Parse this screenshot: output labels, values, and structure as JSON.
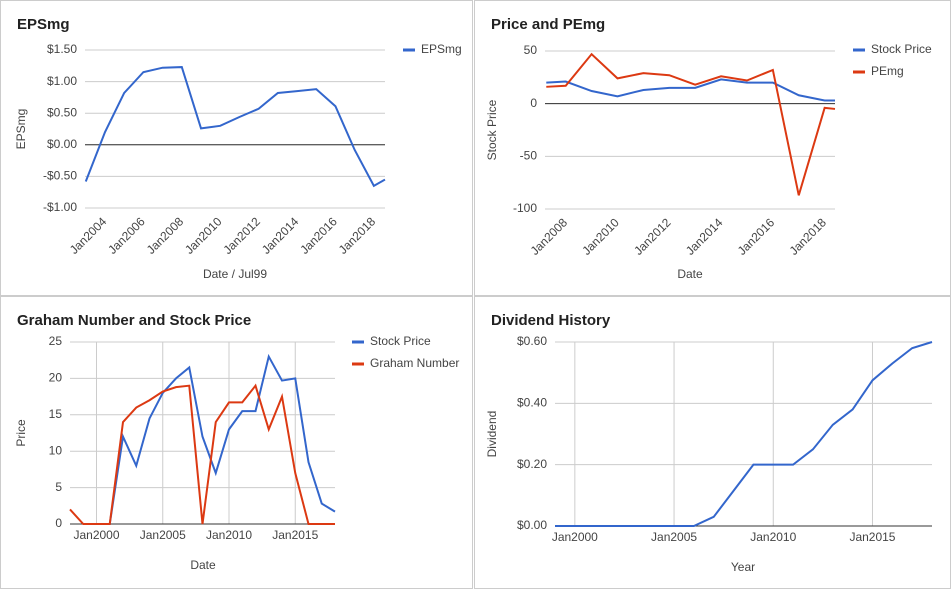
{
  "chart_data": [
    {
      "type": "line",
      "title": "EPSmg",
      "xlabel": "Date / Jul99",
      "ylabel": "EPSmg",
      "x": [
        2003,
        2004,
        2005,
        2006,
        2007,
        2008,
        2009,
        2010,
        2011,
        2012,
        2013,
        2014,
        2015,
        2016,
        2017,
        2018,
        2018.58
      ],
      "series": [
        {
          "name": "EPSmg",
          "color": "#3366cc",
          "values": [
            -0.58,
            0.2,
            0.82,
            1.15,
            1.22,
            1.23,
            0.26,
            0.3,
            0.44,
            0.57,
            0.82,
            0.85,
            0.88,
            0.61,
            -0.08,
            -0.65,
            -0.55
          ]
        }
      ],
      "xlim": [
        2002.96,
        2018.58
      ],
      "xticks": [
        {
          "value": 2004,
          "label": "Jan2004"
        },
        {
          "value": 2006,
          "label": "Jan2006"
        },
        {
          "value": 2008,
          "label": "Jan2008"
        },
        {
          "value": 2010,
          "label": "Jan2010"
        },
        {
          "value": 2012,
          "label": "Jan2012"
        },
        {
          "value": 2014,
          "label": "Jan2014"
        },
        {
          "value": 2016,
          "label": "Jan2016"
        },
        {
          "value": 2018,
          "label": "Jan2018"
        }
      ],
      "ylim": [
        -1,
        1.5
      ],
      "yticks": [
        {
          "value": 1.5,
          "label": "$1.50"
        },
        {
          "value": 1,
          "label": "$1.00"
        },
        {
          "value": 0.5,
          "label": "$0.50"
        },
        {
          "value": 0,
          "label": "$0.00"
        },
        {
          "value": -0.5,
          "label": "-$0.50"
        },
        {
          "value": -1,
          "label": "-$1.00"
        }
      ],
      "grid": true,
      "xgrid": false,
      "legend": "right"
    },
    {
      "type": "line",
      "title": "Price and PEmg",
      "xlabel": "Date",
      "ylabel": "Stock Price",
      "x": [
        2007.25,
        2008,
        2009,
        2010,
        2011,
        2012,
        2013,
        2014,
        2015,
        2016,
        2017,
        2018,
        2018.4
      ],
      "series": [
        {
          "name": "Stock Price",
          "color": "#3366cc",
          "values": [
            20,
            21,
            12,
            7,
            13,
            15,
            15,
            23,
            20,
            20,
            8,
            3,
            3
          ]
        },
        {
          "name": "PEmg",
          "color": "#dc3912",
          "values": [
            16,
            17,
            47,
            24,
            29,
            27,
            18,
            26,
            22,
            32,
            -87,
            -4,
            -5
          ]
        }
      ],
      "xlim": [
        2007.2,
        2018.4
      ],
      "xticks": [
        {
          "value": 2008,
          "label": "Jan2008"
        },
        {
          "value": 2010,
          "label": "Jan2010"
        },
        {
          "value": 2012,
          "label": "Jan2012"
        },
        {
          "value": 2014,
          "label": "Jan2014"
        },
        {
          "value": 2016,
          "label": "Jan2016"
        },
        {
          "value": 2018,
          "label": "Jan2018"
        }
      ],
      "ylim": [
        -100,
        50
      ],
      "yticks": [
        50,
        0,
        -50,
        -100
      ],
      "grid": true,
      "xgrid": false,
      "legend": "right"
    },
    {
      "type": "line",
      "title": "Graham Number and Stock Price",
      "xlabel": "Date",
      "ylabel": "Price",
      "x": [
        1998,
        1999,
        2000,
        2001,
        2002,
        2003,
        2004,
        2005,
        2006,
        2007,
        2008,
        2009,
        2010,
        2011,
        2012,
        2013,
        2014,
        2015,
        2016,
        2017,
        2018
      ],
      "series": [
        {
          "name": "Stock Price",
          "color": "#3366cc",
          "values": [
            null,
            0,
            0,
            0,
            12,
            8,
            14.5,
            18,
            20,
            21.5,
            12,
            7,
            13,
            15.5,
            15.5,
            23,
            19.7,
            20,
            8.5,
            2.8,
            1.7
          ]
        },
        {
          "name": "Graham Number",
          "color": "#dc3912",
          "values": [
            2,
            0,
            0,
            0,
            14,
            16,
            17,
            18.2,
            18.8,
            19,
            0,
            14,
            16.7,
            16.7,
            19,
            13,
            17.5,
            7,
            0,
            0,
            0
          ]
        }
      ],
      "xlim": [
        1998,
        2018
      ],
      "xticks": [
        {
          "value": 2000,
          "label": "Jan2000"
        },
        {
          "value": 2005,
          "label": "Jan2005"
        },
        {
          "value": 2010,
          "label": "Jan2010"
        },
        {
          "value": 2015,
          "label": "Jan2015"
        }
      ],
      "ylim": [
        0,
        25
      ],
      "yticks": [
        0,
        5,
        10,
        15,
        20,
        25
      ],
      "grid": true,
      "xgrid": true,
      "legend": "right"
    },
    {
      "type": "line",
      "title": "Dividend History",
      "xlabel": "Year",
      "ylabel": "Dividend",
      "x": [
        1999,
        2000,
        2001,
        2002,
        2003,
        2004,
        2005,
        2006,
        2007,
        2008,
        2009,
        2010,
        2011,
        2012,
        2013,
        2014,
        2015,
        2016,
        2017,
        2018
      ],
      "series": [
        {
          "color": "#3366cc",
          "values": [
            0,
            0,
            0,
            0,
            0,
            0,
            0,
            0,
            0.03,
            0.115,
            0.2,
            0.2,
            0.2,
            0.25,
            0.33,
            0.38,
            0.475,
            0.53,
            0.58,
            0.6
          ]
        }
      ],
      "xlim": [
        1999,
        2018
      ],
      "xticks": [
        {
          "value": 2000,
          "label": "Jan2000"
        },
        {
          "value": 2005,
          "label": "Jan2005"
        },
        {
          "value": 2010,
          "label": "Jan2010"
        },
        {
          "value": 2015,
          "label": "Jan2015"
        }
      ],
      "ylim": [
        0,
        0.6
      ],
      "yticks": [
        {
          "value": 0,
          "label": "$0.00"
        },
        {
          "value": 0.2,
          "label": "$0.20"
        },
        {
          "value": 0.4,
          "label": "$0.40"
        },
        {
          "value": 0.6,
          "label": "$0.60"
        }
      ],
      "grid": true,
      "xgrid": true
    }
  ]
}
